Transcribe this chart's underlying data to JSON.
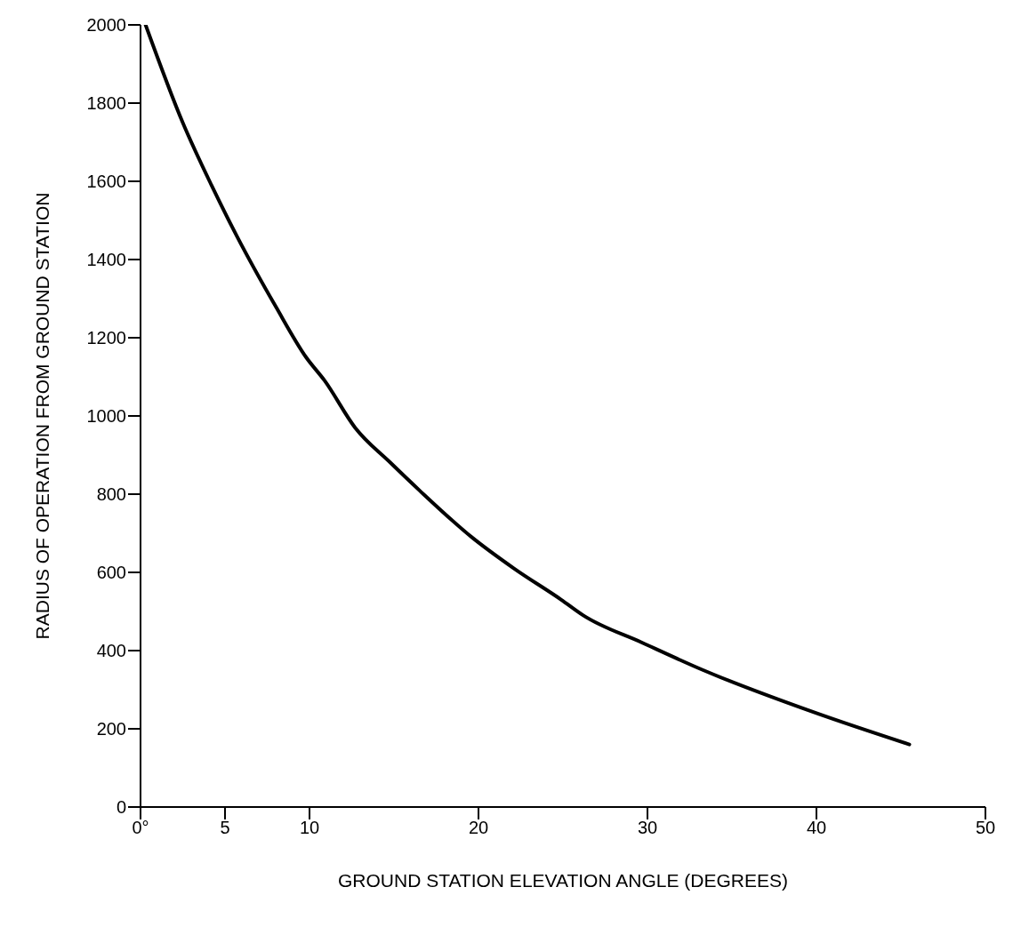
{
  "chart_data": {
    "type": "line",
    "xlabel": "GROUND STATION ELEVATION ANGLE (DEGREES)",
    "ylabel": "RADIUS OF OPERATION FROM GROUND STATION",
    "x": [
      0.3,
      2.5,
      4.2,
      5.7,
      8.0,
      9.8,
      10.9,
      12.7,
      14.8,
      16.5,
      19.6,
      22.1,
      24.9,
      26.2,
      29.7,
      33.3,
      40,
      45.5
    ],
    "series": [
      {
        "color": "#000000",
        "values": [
          2000,
          1750,
          1590,
          1460,
          1280,
          1150,
          1090,
          970,
          880,
          810,
          690,
          610,
          530,
          490,
          420,
          350,
          240,
          160
        ]
      }
    ],
    "xlim": [
      0,
      50
    ],
    "xticks": [
      {
        "value": 0,
        "label": "0°"
      },
      5,
      10,
      20,
      30,
      40,
      50
    ],
    "ylim": [
      0,
      2000
    ],
    "yticks": [
      0,
      200,
      400,
      600,
      800,
      1000,
      1200,
      1400,
      1600,
      1800,
      2000
    ],
    "grid": false,
    "marker": "none",
    "line_style": "solid"
  }
}
